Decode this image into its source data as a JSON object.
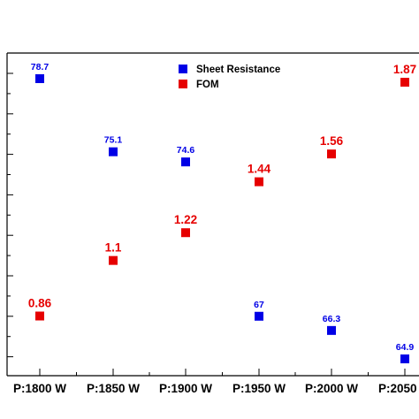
{
  "chart_data": {
    "type": "scatter",
    "categories": [
      "P:1800 W",
      "P:1850 W",
      "P:1900 W",
      "P:1950 W",
      "P:2000 W",
      "P:2050 W"
    ],
    "series": [
      {
        "name": "Sheet Resistance",
        "color": "#0000e6",
        "values": [
          78.7,
          75.1,
          74.6,
          67,
          66.3,
          64.9
        ],
        "labels": [
          "78.7",
          "75.1",
          "74.6",
          "67",
          "66.3",
          "64.9"
        ]
      },
      {
        "name": "FOM",
        "color": "#e60000",
        "values": [
          0.86,
          1.1,
          1.22,
          1.44,
          1.56,
          1.87
        ],
        "labels": [
          "0.86",
          "1.1",
          "1.22",
          "1.44",
          "1.56",
          "1.87"
        ]
      }
    ],
    "grid": false,
    "legend_position": "top-center",
    "title": "",
    "xlabel": "",
    "ylabel": ""
  }
}
